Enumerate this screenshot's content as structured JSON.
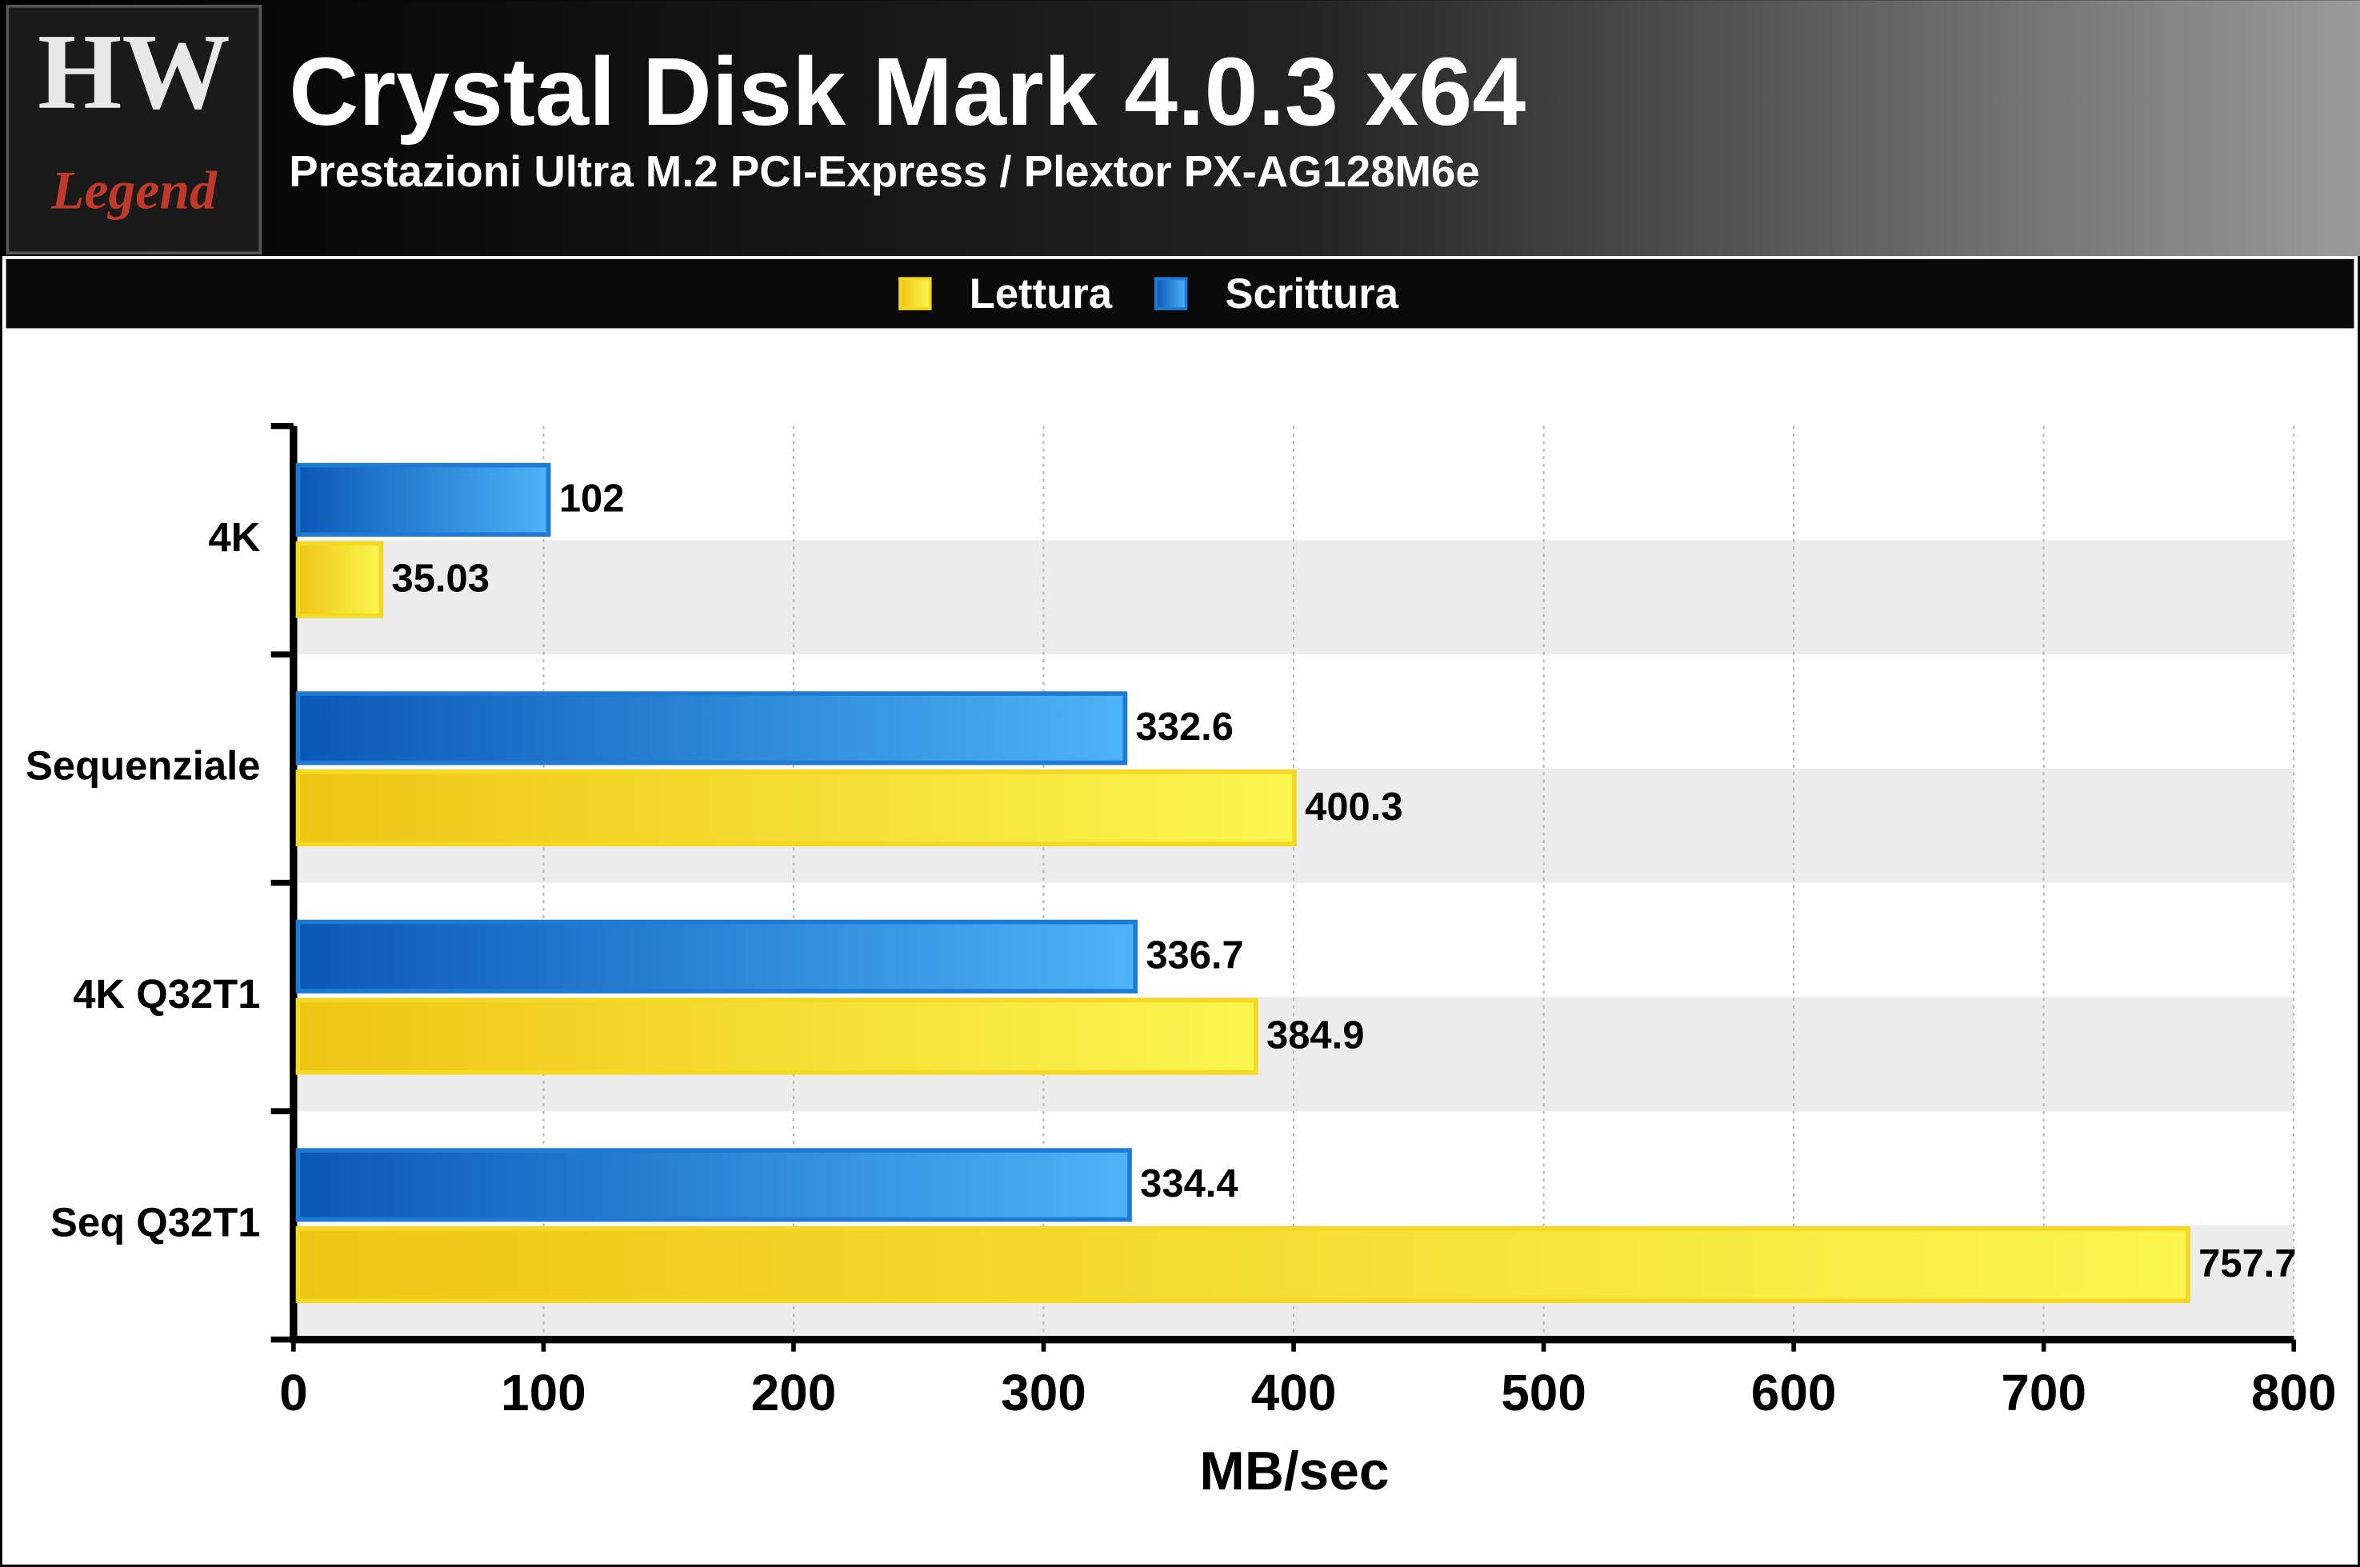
{
  "logo": {
    "top": "HW",
    "bottom": "Legend"
  },
  "chart_data": {
    "type": "bar",
    "orientation": "horizontal",
    "title": "Crystal Disk Mark 4.0.3 x64",
    "subtitle": "Prestazioni Ultra M.2 PCI-Express / Plextor PX-AG128M6e",
    "x_label": "MB/sec",
    "categories": [
      "4K",
      "Sequenziale",
      "4K Q32T1",
      "Seq Q32T1"
    ],
    "series": [
      {
        "name": "Lettura",
        "color": "#f5d820",
        "values": [
          35.03,
          400.3,
          384.9,
          757.7
        ]
      },
      {
        "name": "Scrittura",
        "color": "#1f7ad6",
        "values": [
          102,
          332.6,
          336.7,
          334.4
        ]
      }
    ],
    "xlim": [
      0,
      800
    ],
    "xticks": [
      0,
      100,
      200,
      300,
      400,
      500,
      600,
      700,
      800
    ],
    "grid": true,
    "legend": "top"
  }
}
